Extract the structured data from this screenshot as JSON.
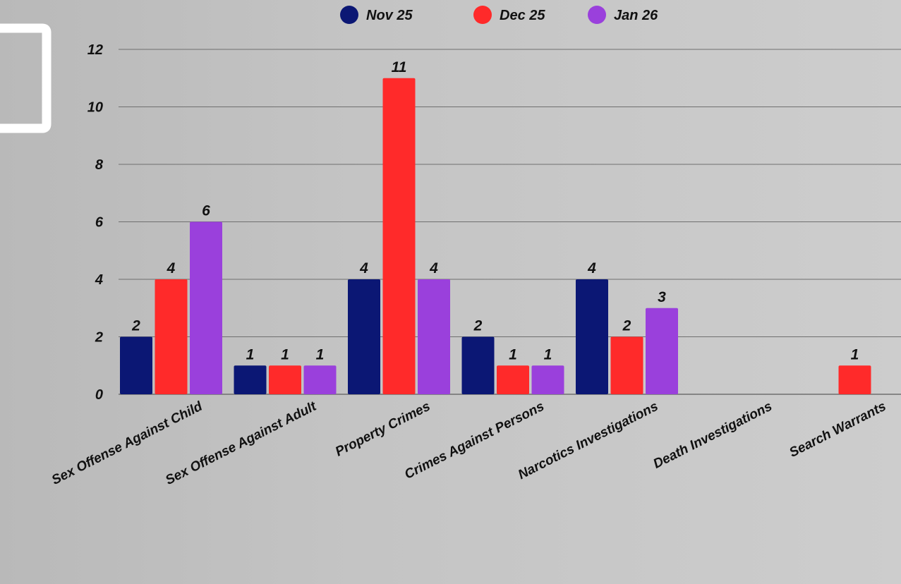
{
  "chart_data": {
    "type": "bar",
    "categories": [
      "Sex Offense Against Child",
      "Sex Offense Against Adult",
      "Property Crimes",
      "Crimes Against Persons",
      "Narcotics Investigations",
      "Death Investigations",
      "Search Warrants"
    ],
    "series": [
      {
        "name": "Nov 25",
        "color": "#0b1774",
        "values": [
          2,
          1,
          4,
          2,
          4,
          0,
          0
        ]
      },
      {
        "name": "Dec 25",
        "color": "#ff2a2a",
        "values": [
          4,
          1,
          11,
          1,
          2,
          0,
          1
        ]
      },
      {
        "name": "Jan 26",
        "color": "#9a40dc",
        "values": [
          6,
          1,
          4,
          1,
          3,
          0,
          0
        ]
      }
    ],
    "yticks": [
      "0",
      "2",
      "4",
      "6",
      "8",
      "10",
      "12"
    ],
    "ylim": [
      0,
      12
    ],
    "title": "",
    "xlabel": "",
    "ylabel": "",
    "grid": true,
    "legend_position": "top-center"
  }
}
